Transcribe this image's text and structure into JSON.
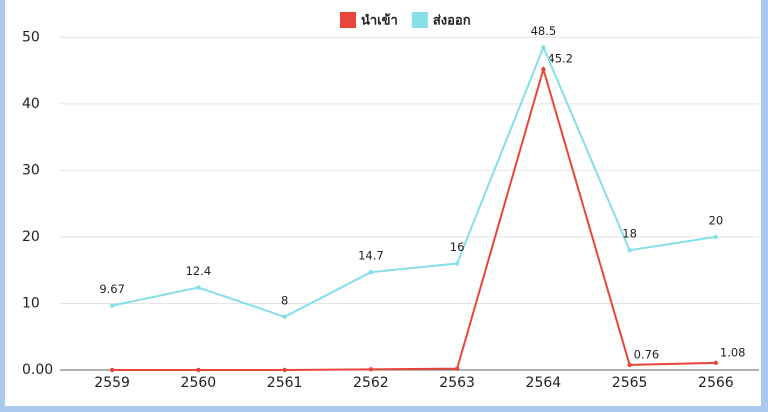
{
  "chart_data": {
    "type": "line",
    "categories": [
      "2559",
      "2560",
      "2561",
      "2562",
      "2563",
      "2564",
      "2565",
      "2566"
    ],
    "series": [
      {
        "name": "นำเข้า",
        "color": "#e8463c",
        "values": [
          0,
          0,
          0,
          0.1,
          0.2,
          45.2,
          0.76,
          1.08
        ],
        "value_labels": [
          null,
          null,
          null,
          null,
          null,
          "45.2",
          "0.76",
          "1.08"
        ]
      },
      {
        "name": "ส่งออก",
        "color": "#84dfe6",
        "values": [
          9.67,
          12.4,
          8,
          14.7,
          16,
          48.5,
          18,
          20
        ]
      }
    ],
    "ylim": [
      0,
      52
    ],
    "yticks": [
      {
        "value": 0,
        "label": "0.00"
      },
      10,
      20,
      30,
      40,
      50
    ],
    "grid": true,
    "legend": "top"
  }
}
